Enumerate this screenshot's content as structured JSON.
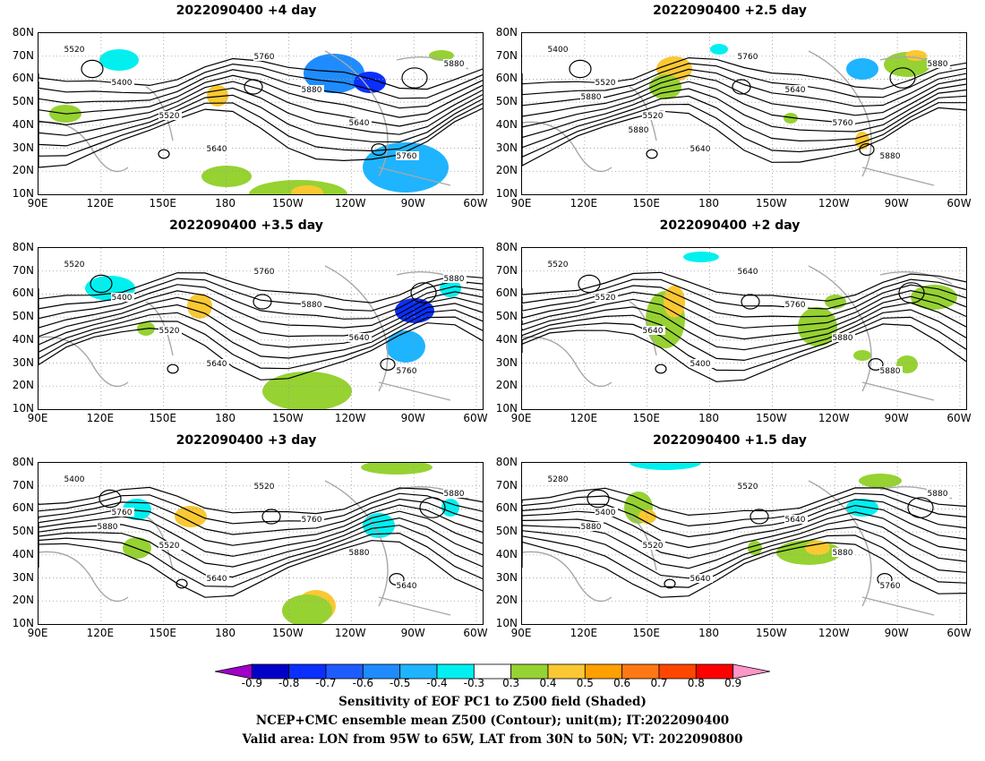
{
  "panels": [
    {
      "title": "2022090400  +4 day",
      "contour_labels": [
        "5520",
        "5400",
        "5520",
        "5640",
        "5760",
        "5880",
        "5640",
        "5760",
        "5880"
      ],
      "y_labels": [
        "80N",
        "70N",
        "60N",
        "50N",
        "40N",
        "30N",
        "20N",
        "10N"
      ],
      "x_labels": [
        "90E",
        "120E",
        "150E",
        "180",
        "150W",
        "120W",
        "90W",
        "60W"
      ]
    },
    {
      "title": "2022090400  +2.5 day",
      "contour_labels": [
        "5400",
        "5520",
        "5520",
        "5640",
        "5760",
        "5640",
        "5760",
        "5880",
        "5880",
        "5880",
        "5880"
      ],
      "y_labels": [
        "80N",
        "70N",
        "60N",
        "50N",
        "40N",
        "30N",
        "20N",
        "10N"
      ],
      "x_labels": [
        "90E",
        "120E",
        "150E",
        "180",
        "150W",
        "120W",
        "90W",
        "60W"
      ]
    },
    {
      "title": "2022090400  +3.5 day",
      "contour_labels": [
        "5520",
        "5400",
        "5520",
        "5640",
        "5760",
        "5880",
        "5640",
        "5760",
        "5880"
      ],
      "y_labels": [
        "80N",
        "70N",
        "60N",
        "50N",
        "40N",
        "30N",
        "20N",
        "10N"
      ],
      "x_labels": [
        "90E",
        "120E",
        "150E",
        "180",
        "150W",
        "120W",
        "90W",
        "60W"
      ]
    },
    {
      "title": "2022090400  +2 day",
      "contour_labels": [
        "5520",
        "5520",
        "5640",
        "5400",
        "5640",
        "5760",
        "5880",
        "5880"
      ],
      "y_labels": [
        "80N",
        "70N",
        "60N",
        "50N",
        "40N",
        "30N",
        "20N",
        "10N"
      ],
      "x_labels": [
        "90E",
        "120E",
        "150E",
        "180",
        "150W",
        "120W",
        "90W",
        "60W"
      ]
    },
    {
      "title": "2022090400  +3 day",
      "contour_labels": [
        "5400",
        "5760",
        "5520",
        "5640",
        "5520",
        "5760",
        "5880",
        "5640",
        "5880",
        "5880"
      ],
      "y_labels": [
        "80N",
        "70N",
        "60N",
        "50N",
        "40N",
        "30N",
        "20N",
        "10N"
      ],
      "x_labels": [
        "90E",
        "120E",
        "150E",
        "180",
        "150W",
        "120W",
        "90W",
        "60W"
      ]
    },
    {
      "title": "2022090400  +1.5 day",
      "contour_labels": [
        "5280",
        "5400",
        "5520",
        "5640",
        "5520",
        "5640",
        "5880",
        "5760",
        "5880",
        "5880"
      ],
      "y_labels": [
        "80N",
        "70N",
        "60N",
        "50N",
        "40N",
        "30N",
        "20N",
        "10N"
      ],
      "x_labels": [
        "90E",
        "120E",
        "150E",
        "180",
        "150W",
        "120W",
        "90W",
        "60W"
      ]
    }
  ],
  "colorbar": {
    "values": [
      "-0.9",
      "-0.8",
      "-0.7",
      "-0.6",
      "-0.5",
      "-0.4",
      "-0.3",
      "0.3",
      "0.4",
      "0.5",
      "0.6",
      "0.7",
      "0.8",
      "0.9"
    ],
    "colors": [
      "#a000c8",
      "#0000c8",
      "#0a2fff",
      "#1e5cff",
      "#1e8cff",
      "#1eb4ff",
      "#00f0f0",
      "#ffffff",
      "#96d232",
      "#fac832",
      "#ffa000",
      "#ff7814",
      "#ff4600",
      "#ff0000",
      "#ff96c8"
    ]
  },
  "captions": [
    "Sensitivity of EOF PC1 to Z500 field (Shaded)",
    "NCEP+CMC ensemble mean Z500 (Contour); unit(m); IT:2022090400",
    "Valid area: LON from 95W to 65W, LAT from 30N to 50N; VT: 2022090800"
  ]
}
